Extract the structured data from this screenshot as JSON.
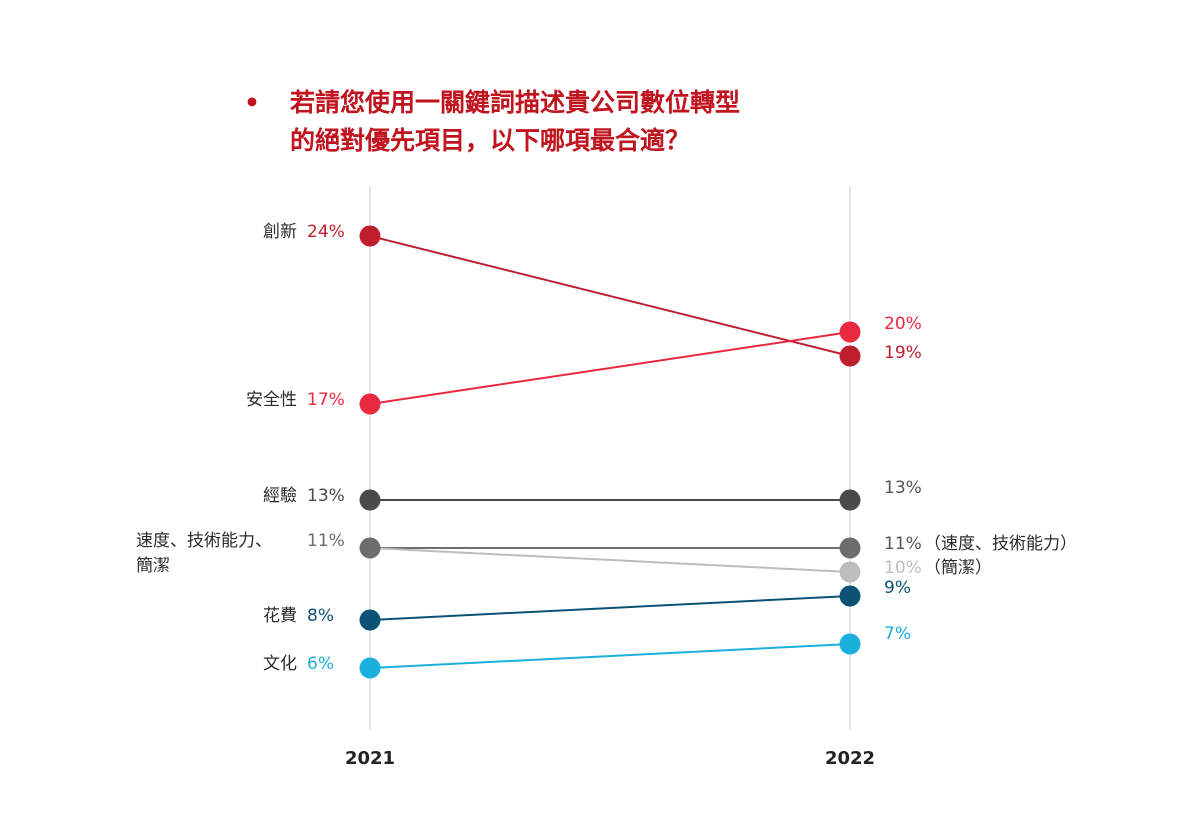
{
  "title": {
    "bullet": "•",
    "line1": "若請您使用一關鍵詞描述貴公司數位轉型",
    "line2": "的絕對優先項目，以下哪項最合適？"
  },
  "chart_data": {
    "type": "line",
    "x": [
      "2021",
      "2022"
    ],
    "series": [
      {
        "name": "創新",
        "values": [
          24,
          19
        ],
        "labels": [
          "24%",
          "19%"
        ],
        "color": "#be1e2d"
      },
      {
        "name": "安全性",
        "values": [
          17,
          20
        ],
        "labels": [
          "17%",
          "20%"
        ],
        "color": "#e8293f"
      },
      {
        "name": "經驗",
        "values": [
          13,
          13
        ],
        "labels": [
          "13%",
          "13%"
        ],
        "color": "#4a4a4a"
      },
      {
        "name": "速度、技術能力",
        "values": [
          11,
          11
        ],
        "labels": [
          "11%",
          "11%"
        ],
        "color": "#6d6d6d",
        "tag2022": "（速度、技術能力）"
      },
      {
        "name": "簡潔",
        "values": [
          11,
          10
        ],
        "labels": [
          "",
          "10%"
        ],
        "color": "#bdbdbd",
        "tag2022": "（簡潔）"
      },
      {
        "name": "花費",
        "values": [
          8,
          9
        ],
        "labels": [
          "8%",
          "9%"
        ],
        "color": "#0c5275"
      },
      {
        "name": "文化",
        "values": [
          6,
          7
        ],
        "labels": [
          "6%",
          "7%"
        ],
        "color": "#1ab0dc"
      }
    ],
    "row_labels_2021": [
      {
        "text": "創新",
        "series": 0
      },
      {
        "text": "安全性",
        "series": 1
      },
      {
        "text": "經驗",
        "series": 2
      },
      {
        "text": "速度、技術能力、",
        "text2": "簡潔",
        "series": 3
      },
      {
        "text": "花費",
        "series": 5
      },
      {
        "text": "文化",
        "series": 6
      }
    ]
  }
}
